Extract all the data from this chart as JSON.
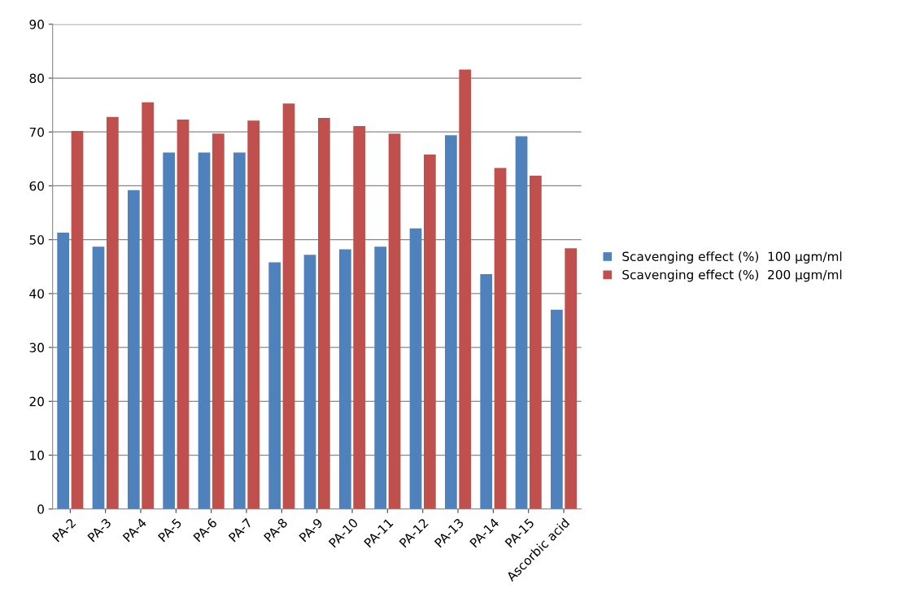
{
  "chart_data": {
    "type": "bar",
    "categories": [
      "PA-2",
      "PA-3",
      "PA-4",
      "PA-5",
      "PA-6",
      "PA-7",
      "PA-8",
      "PA-9",
      "PA-10",
      "PA-11",
      "PA-12",
      "PA-13",
      "PA-14",
      "PA-15",
      "Ascorbic acid"
    ],
    "series": [
      {
        "name": "Scavenging effect (%)  100 µgm/ml",
        "color": "#4f81bd",
        "values": [
          51.3,
          48.7,
          59.2,
          66.2,
          66.2,
          66.2,
          45.8,
          47.2,
          48.2,
          48.7,
          52.1,
          69.4,
          43.6,
          69.2,
          37.0
        ]
      },
      {
        "name": "Scavenging effect (%)  200 µgm/ml",
        "color": "#c0504d",
        "values": [
          70.2,
          72.8,
          75.5,
          72.3,
          69.7,
          72.1,
          75.3,
          72.6,
          71.1,
          69.7,
          65.8,
          81.6,
          63.3,
          61.9,
          48.4
        ]
      }
    ],
    "ylim": [
      0,
      90
    ],
    "yticks": [
      0,
      10,
      20,
      30,
      40,
      50,
      60,
      70,
      80,
      90
    ],
    "grid": "y",
    "legend": "right"
  }
}
